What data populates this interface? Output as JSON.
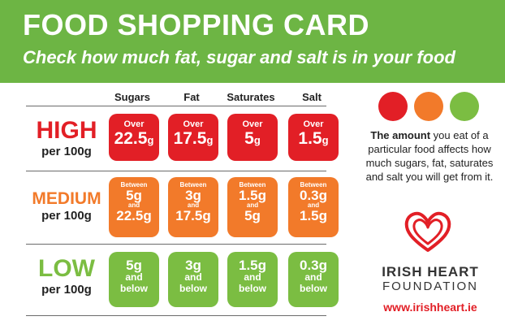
{
  "header": {
    "title": "FOOD SHOPPING CARD",
    "subtitle": "Check how much fat, sugar and salt is in your food",
    "bg_color": "#6db544"
  },
  "columns": [
    "Sugars",
    "Fat",
    "Saturates",
    "Salt"
  ],
  "rows": [
    {
      "level": "HIGH",
      "per": "per 100g",
      "color": "#e21f26",
      "cells": [
        {
          "prefix": "Over",
          "value": "22.5",
          "unit": "g"
        },
        {
          "prefix": "Over",
          "value": "17.5",
          "unit": "g"
        },
        {
          "prefix": "Over",
          "value": "5",
          "unit": "g"
        },
        {
          "prefix": "Over",
          "value": "1.5",
          "unit": "g"
        }
      ]
    },
    {
      "level": "MEDIUM",
      "per": "per 100g",
      "color": "#f27a2a",
      "cells": [
        {
          "prefix": "Between",
          "low": "5g",
          "and": "and",
          "high": "22.5g"
        },
        {
          "prefix": "Between",
          "low": "3g",
          "and": "and",
          "high": "17.5g"
        },
        {
          "prefix": "Between",
          "low": "1.5g",
          "and": "and",
          "high": "5g"
        },
        {
          "prefix": "Between",
          "low": "0.3g",
          "and": "and",
          "high": "1.5g"
        }
      ]
    },
    {
      "level": "LOW",
      "per": "per 100g",
      "color": "#7bbd42",
      "cells": [
        {
          "value": "5g",
          "suffix1": "and",
          "suffix2": "below"
        },
        {
          "value": "3g",
          "suffix1": "and",
          "suffix2": "below"
        },
        {
          "value": "1.5g",
          "suffix1": "and",
          "suffix2": "below"
        },
        {
          "value": "0.3g",
          "suffix1": "and",
          "suffix2": "below"
        }
      ]
    }
  ],
  "legend_colors": [
    "#e21f26",
    "#f27a2a",
    "#7bbd42"
  ],
  "description": {
    "part1": "The ",
    "emph": "amount",
    "part2": " you eat of a particular food affects how much sugars, fat, saturates and salt you will get from it."
  },
  "logo_icon": "heart-icon",
  "org": {
    "line1": "IRISH HEART",
    "line2": "FOUNDATION"
  },
  "website": "www.irishheart.ie"
}
